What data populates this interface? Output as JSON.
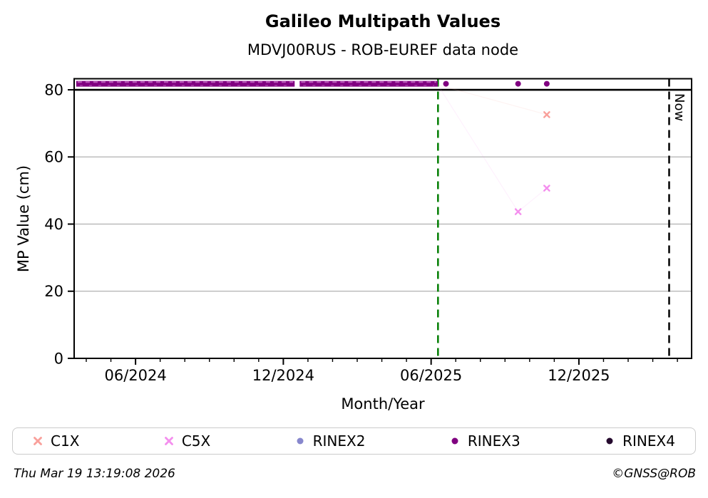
{
  "chart_data": {
    "type": "scatter",
    "title": "Galileo Multipath Values",
    "subtitle": "MDVJ00RUS - ROB-EUREF data node",
    "xlabel": "Month/Year",
    "ylabel": "MP Value (cm)",
    "x_unit": "decimal_year",
    "xlim": [
      2024.209,
      2026.298
    ],
    "ylim": [
      0,
      83.3
    ],
    "grid": "horizontal",
    "grid_color": "#b0b0b0",
    "frame_color": "#000000",
    "yticks": [
      {
        "value": 0,
        "label": "0"
      },
      {
        "value": 20,
        "label": "20"
      },
      {
        "value": 40,
        "label": "40"
      },
      {
        "value": 60,
        "label": "60"
      },
      {
        "value": 80,
        "label": "80"
      }
    ],
    "xticks_major": [
      {
        "value": 2024.4167,
        "label": "06/2024"
      },
      {
        "value": 2024.9167,
        "label": "12/2024"
      },
      {
        "value": 2025.4167,
        "label": "06/2025"
      },
      {
        "value": 2025.9167,
        "label": "12/2025"
      }
    ],
    "xticks_minor_step_years": 0.0833333,
    "threshold_line": {
      "y": 80,
      "color": "#000000"
    },
    "event_lines": [
      {
        "name": "last-data-line",
        "x": 2025.44,
        "color": "#007d00",
        "style": "dashed",
        "label": ""
      },
      {
        "name": "now-line",
        "x": 2026.222,
        "color": "#000000",
        "style": "dashed",
        "label": "Now"
      }
    ],
    "dense_band": {
      "y": 81.8,
      "half_height_cm": 0.85,
      "color": "#800080",
      "highlight_color": "#c46ac4",
      "segments": [
        [
          2024.216,
          2024.955
        ],
        [
          2024.972,
          2025.439
        ]
      ]
    },
    "series": [
      {
        "name": "C1X",
        "marker": "x",
        "color": "#f9a09b",
        "points": [
          {
            "x": 2025.808,
            "y": 72.6
          }
        ],
        "trace": [
          {
            "x": 2025.439,
            "y": 81.5
          },
          {
            "x": 2025.808,
            "y": 72.6
          }
        ]
      },
      {
        "name": "C5X",
        "marker": "x",
        "color": "#f48fee",
        "points": [
          {
            "x": 2025.711,
            "y": 43.7
          },
          {
            "x": 2025.808,
            "y": 50.7
          }
        ],
        "trace": [
          {
            "x": 2025.439,
            "y": 81.5
          },
          {
            "x": 2025.711,
            "y": 43.7
          },
          {
            "x": 2025.808,
            "y": 50.7
          }
        ]
      },
      {
        "name": "RINEX2",
        "marker": "circle",
        "color": "#8787cd",
        "points": []
      },
      {
        "name": "RINEX3",
        "marker": "circle",
        "color": "#800080",
        "points": [
          {
            "x": 2025.467,
            "y": 81.8
          },
          {
            "x": 2025.711,
            "y": 81.8
          },
          {
            "x": 2025.808,
            "y": 81.8
          }
        ]
      },
      {
        "name": "RINEX4",
        "marker": "circle",
        "color": "#250a2e",
        "points": []
      }
    ],
    "legend_position": "bottom"
  },
  "footer": {
    "timestamp": "Thu Mar 19 13:19:08 2026",
    "copyright": "©GNSS@ROB"
  }
}
